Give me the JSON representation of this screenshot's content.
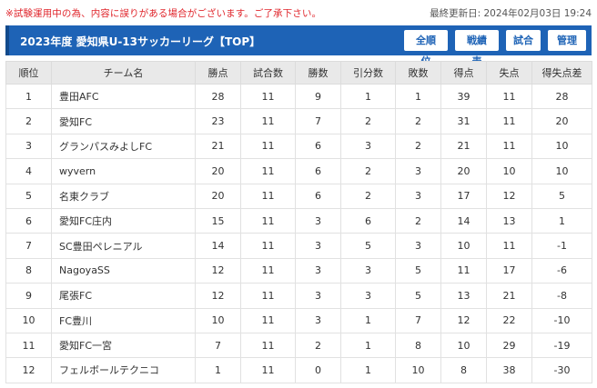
{
  "notice": "※試験運用中の為、内容に誤りがある場合がございます。ご了承下さい。",
  "updated": "最終更新日: 2024年02月03日 19:24",
  "header": {
    "title": "2023年度 愛知県U-13サッカーリーグ【TOP】"
  },
  "nav": [
    "全順位",
    "戦績表",
    "試合",
    "管理"
  ],
  "columns": [
    "順位",
    "チーム名",
    "勝点",
    "試合数",
    "勝数",
    "引分数",
    "敗数",
    "得点",
    "失点",
    "得失点差"
  ],
  "rows": [
    [
      "1",
      "豊田AFC",
      "28",
      "11",
      "9",
      "1",
      "1",
      "39",
      "11",
      "28"
    ],
    [
      "2",
      "愛知FC",
      "23",
      "11",
      "7",
      "2",
      "2",
      "31",
      "11",
      "20"
    ],
    [
      "3",
      "グランパスみよしFC",
      "21",
      "11",
      "6",
      "3",
      "2",
      "21",
      "11",
      "10"
    ],
    [
      "4",
      "wyvern",
      "20",
      "11",
      "6",
      "2",
      "3",
      "20",
      "10",
      "10"
    ],
    [
      "5",
      "名東クラブ",
      "20",
      "11",
      "6",
      "2",
      "3",
      "17",
      "12",
      "5"
    ],
    [
      "6",
      "愛知FC庄内",
      "15",
      "11",
      "3",
      "6",
      "2",
      "14",
      "13",
      "1"
    ],
    [
      "7",
      "SC豊田ペレニアル",
      "14",
      "11",
      "3",
      "5",
      "3",
      "10",
      "11",
      "-1"
    ],
    [
      "8",
      "NagoyaSS",
      "12",
      "11",
      "3",
      "3",
      "5",
      "11",
      "17",
      "-6"
    ],
    [
      "9",
      "尾張FC",
      "12",
      "11",
      "3",
      "3",
      "5",
      "13",
      "21",
      "-8"
    ],
    [
      "10",
      "FC豊川",
      "10",
      "11",
      "3",
      "1",
      "7",
      "12",
      "22",
      "-10"
    ],
    [
      "11",
      "愛知FC一宮",
      "7",
      "11",
      "2",
      "1",
      "8",
      "10",
      "29",
      "-19"
    ],
    [
      "12",
      "フェルボールテクニコ",
      "1",
      "11",
      "0",
      "1",
      "10",
      "8",
      "38",
      "-30"
    ]
  ]
}
